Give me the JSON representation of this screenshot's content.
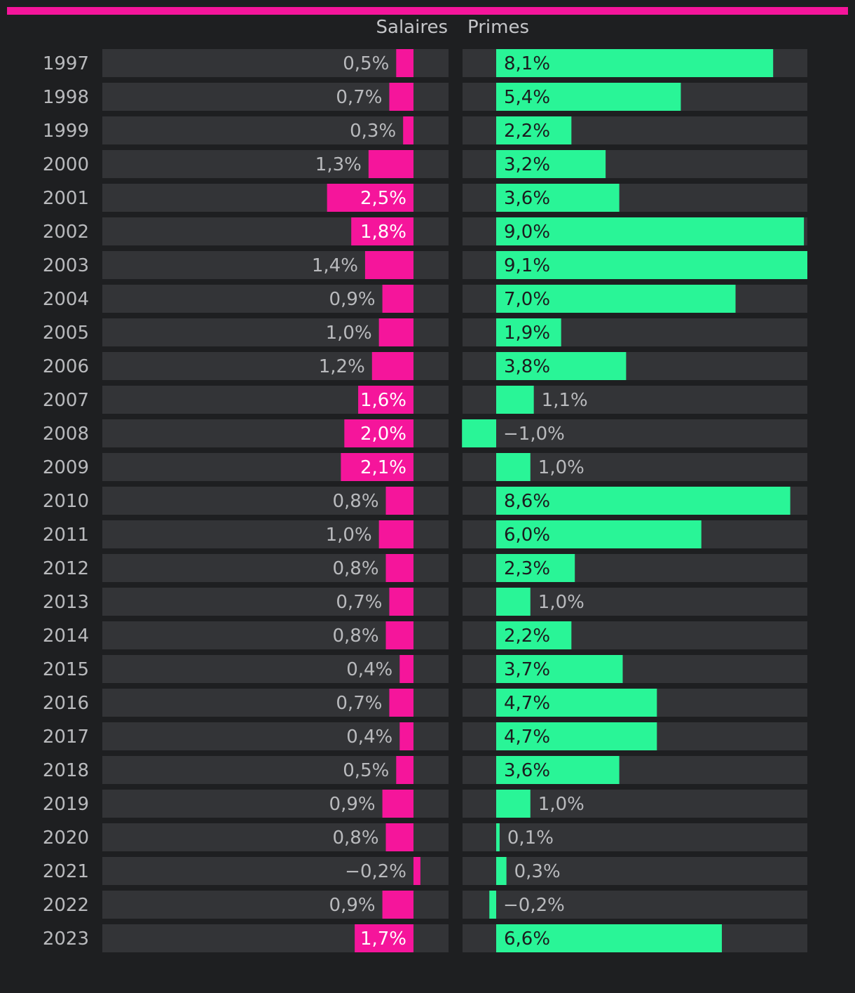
{
  "colors": {
    "background": "#1e1f21",
    "track": "#333437",
    "salaires": "#f5159b",
    "primes": "#29f597",
    "accent": "#f5159b",
    "label_muted": "#b9babd",
    "label_on_pink": "#ffffff",
    "label_on_green": "#1b1c1e"
  },
  "chart_data": {
    "type": "bar",
    "title": "",
    "orientation": "horizontal",
    "categories": [
      "1997",
      "1998",
      "1999",
      "2000",
      "2001",
      "2002",
      "2003",
      "2004",
      "2005",
      "2006",
      "2007",
      "2008",
      "2009",
      "2010",
      "2011",
      "2012",
      "2013",
      "2014",
      "2015",
      "2016",
      "2017",
      "2018",
      "2019",
      "2020",
      "2021",
      "2022",
      "2023"
    ],
    "series": [
      {
        "name": "Salaires",
        "direction": "leftward",
        "values": [
          0.5,
          0.7,
          0.3,
          1.3,
          2.5,
          1.8,
          1.4,
          0.9,
          1.0,
          1.2,
          1.6,
          2.0,
          2.1,
          0.8,
          1.0,
          0.8,
          0.7,
          0.8,
          0.4,
          0.7,
          0.4,
          0.5,
          0.9,
          0.8,
          -0.2,
          0.9,
          1.7
        ],
        "labels": [
          "0,5%",
          "0,7%",
          "0,3%",
          "1,3%",
          "2,5%",
          "1,8%",
          "1,4%",
          "0,9%",
          "1,0%",
          "1,2%",
          "1,6%",
          "2,0%",
          "2,1%",
          "0,8%",
          "1,0%",
          "0,8%",
          "0,7%",
          "0,8%",
          "0,4%",
          "0,7%",
          "0,4%",
          "0,5%",
          "0,9%",
          "0,8%",
          "−0,2%",
          "0,9%",
          "1,7%"
        ],
        "xlim": [
          -1.0,
          9.0
        ]
      },
      {
        "name": "Primes",
        "direction": "rightward",
        "values": [
          8.1,
          5.4,
          2.2,
          3.2,
          3.6,
          9.0,
          9.1,
          7.0,
          1.9,
          3.8,
          1.1,
          -1.0,
          1.0,
          8.6,
          6.0,
          2.3,
          1.0,
          2.2,
          3.7,
          4.7,
          4.7,
          3.6,
          1.0,
          0.1,
          0.3,
          -0.2,
          6.6
        ],
        "labels": [
          "8,1%",
          "5,4%",
          "2,2%",
          "3,2%",
          "3,6%",
          "9,0%",
          "9,1%",
          "7,0%",
          "1,9%",
          "3,8%",
          "1,1%",
          "−1,0%",
          "1,0%",
          "8,6%",
          "6,0%",
          "2,3%",
          "1,0%",
          "2,2%",
          "3,7%",
          "4,7%",
          "4,7%",
          "3,6%",
          "1,0%",
          "0,1%",
          "0,3%",
          "−0,2%",
          "6,6%"
        ],
        "xlim": [
          -1.0,
          9.1
        ]
      }
    ]
  },
  "headers": {
    "salaires": "Salaires",
    "primes": "Primes"
  }
}
